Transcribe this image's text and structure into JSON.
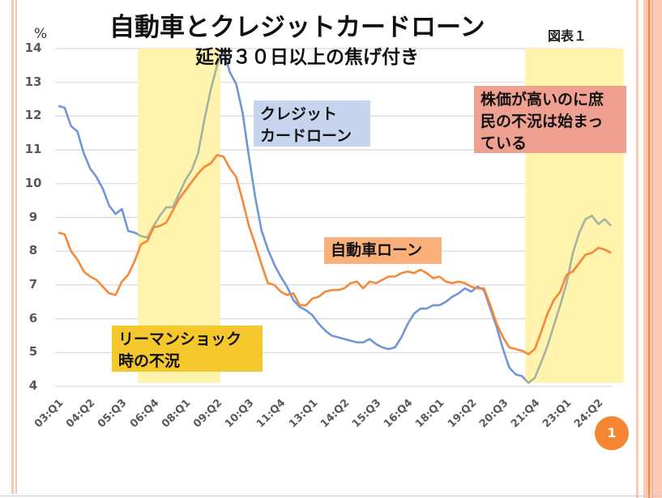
{
  "slide": {
    "figure_label": "図表１",
    "page_number": "1",
    "colors": {
      "credit_card": "#6f97d8",
      "auto": "#f5883a",
      "recession_band": "#fff3ad",
      "callout_credit": "#c6d4ee",
      "callout_auto": "#fbb07c",
      "callout_lehman": "#f4c82c",
      "callout_stocks": "#f0a090",
      "badge": "#f58634"
    }
  },
  "annotations": {
    "credit_label": [
      "クレジット",
      "カードローン"
    ],
    "auto_label": "自動車ローン",
    "lehman_label": [
      "リーマンショック",
      "時の不況"
    ],
    "stocks_label": [
      "株価が高いのに庶",
      "民の不況は始まっ",
      "ている"
    ]
  },
  "chart_data": {
    "type": "line",
    "title": "自動車とクレジットカードローン",
    "subtitle": "延滞３０日以上の焦げ付き",
    "xlabel": "",
    "ylabel": "%",
    "ylim": [
      4,
      14
    ],
    "yticks": [
      4,
      5,
      6,
      7,
      8,
      9,
      10,
      11,
      12,
      13,
      14
    ],
    "grid": true,
    "x_start": "03:Q1",
    "x_end": "24:Q4",
    "xtick_labels": [
      "03:Q1",
      "04:Q2",
      "05:Q3",
      "06:Q4",
      "08:Q1",
      "09:Q2",
      "10:Q3",
      "11:Q4",
      "13:Q1",
      "14:Q2",
      "15:Q3",
      "16:Q4",
      "18:Q1",
      "19:Q2",
      "20:Q3",
      "21:Q4",
      "23:Q1",
      "24:Q2"
    ],
    "xtick_every": 5,
    "shaded_periods": [
      {
        "from_index": 12.5,
        "to_index": 25.5,
        "label": "リーマンショック時の不況"
      },
      {
        "from_index": 73.5,
        "to_index": 89,
        "label": "株価が高いのに庶民の不況は始まっている"
      }
    ],
    "series": [
      {
        "name": "クレジットカードローン",
        "values": [
          12.3,
          12.25,
          11.7,
          11.55,
          10.9,
          10.45,
          10.2,
          9.85,
          9.35,
          9.1,
          9.25,
          8.6,
          8.55,
          8.45,
          8.4,
          8.75,
          9.05,
          9.3,
          9.3,
          9.7,
          10.1,
          10.4,
          10.9,
          11.9,
          12.8,
          13.5,
          13.95,
          13.3,
          12.95,
          12.1,
          10.8,
          9.6,
          8.6,
          8.05,
          7.6,
          7.25,
          6.95,
          6.55,
          6.35,
          6.25,
          6.1,
          5.85,
          5.65,
          5.5,
          5.45,
          5.4,
          5.35,
          5.3,
          5.3,
          5.4,
          5.25,
          5.15,
          5.1,
          5.15,
          5.45,
          5.85,
          6.15,
          6.3,
          6.3,
          6.4,
          6.4,
          6.5,
          6.65,
          6.75,
          6.9,
          6.8,
          6.95,
          6.85,
          6.3,
          5.75,
          5.1,
          4.55,
          4.35,
          4.3,
          4.1,
          4.25,
          4.7,
          5.2,
          5.8,
          6.4,
          7.05,
          7.95,
          8.55,
          8.95,
          9.05,
          8.8,
          8.95,
          8.75
        ]
      },
      {
        "name": "自動車ローン",
        "values": [
          8.55,
          8.5,
          8.0,
          7.75,
          7.4,
          7.25,
          7.15,
          6.95,
          6.75,
          6.7,
          7.1,
          7.3,
          7.7,
          8.2,
          8.3,
          8.7,
          8.75,
          8.85,
          9.2,
          9.55,
          9.8,
          10.05,
          10.3,
          10.5,
          10.6,
          10.85,
          10.8,
          10.45,
          10.2,
          9.5,
          8.75,
          8.2,
          7.6,
          7.05,
          7.0,
          6.8,
          6.7,
          6.75,
          6.4,
          6.4,
          6.6,
          6.65,
          6.8,
          6.85,
          6.85,
          6.9,
          7.05,
          7.1,
          6.9,
          7.1,
          7.05,
          7.15,
          7.25,
          7.25,
          7.35,
          7.4,
          7.35,
          7.45,
          7.35,
          7.2,
          7.25,
          7.1,
          7.05,
          7.1,
          7.05,
          6.95,
          6.9,
          6.9,
          6.4,
          5.85,
          5.45,
          5.15,
          5.1,
          5.05,
          4.95,
          5.1,
          5.6,
          6.15,
          6.55,
          6.8,
          7.3,
          7.4,
          7.65,
          7.9,
          7.95,
          8.1,
          8.05,
          7.95
        ]
      }
    ]
  }
}
